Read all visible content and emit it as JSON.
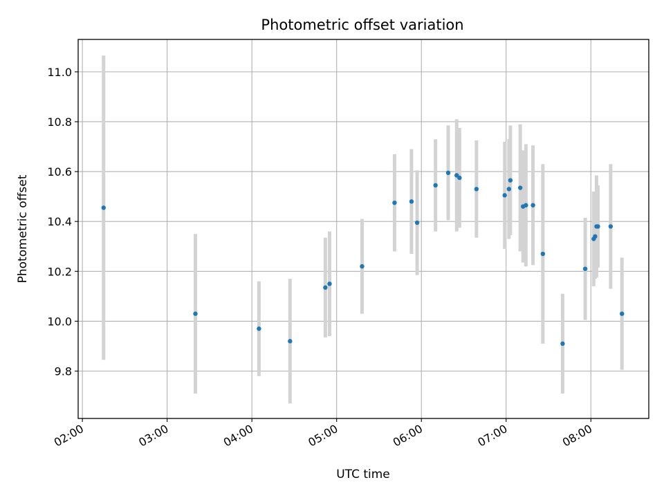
{
  "chart_data": {
    "type": "scatter",
    "title": "Photometric offset variation",
    "xlabel": "UTC time",
    "ylabel": "Photometric offset",
    "x_tick_labels": [
      "02:00",
      "03:00",
      "04:00",
      "05:00",
      "06:00",
      "07:00",
      "08:00"
    ],
    "y_tick_labels": [
      "9.8",
      "10.0",
      "10.2",
      "10.4",
      "10.6",
      "10.8",
      "11.0"
    ],
    "x_ticks": [
      "02:00",
      "03:00",
      "04:00",
      "05:00",
      "06:00",
      "07:00",
      "08:00"
    ],
    "y_ticks": [
      9.8,
      10.0,
      10.2,
      10.4,
      10.6,
      10.8,
      11.0
    ],
    "xlim": [
      "01:57",
      "08:41"
    ],
    "ylim": [
      9.61,
      11.13
    ],
    "grid": true,
    "colors": {
      "point": "#1f77b4",
      "errorbar": "#d3d3d3",
      "grid": "#b0b0b0"
    },
    "points": [
      {
        "x": "02:15",
        "y": 10.455,
        "err": 0.61
      },
      {
        "x": "03:20",
        "y": 10.03,
        "err": 0.32
      },
      {
        "x": "04:05",
        "y": 9.97,
        "err": 0.19
      },
      {
        "x": "04:27",
        "y": 9.92,
        "err": 0.25
      },
      {
        "x": "04:52",
        "y": 10.135,
        "err": 0.2
      },
      {
        "x": "04:55",
        "y": 10.15,
        "err": 0.21
      },
      {
        "x": "05:18",
        "y": 10.22,
        "err": 0.19
      },
      {
        "x": "05:41",
        "y": 10.475,
        "err": 0.195
      },
      {
        "x": "05:53",
        "y": 10.48,
        "err": 0.21
      },
      {
        "x": "05:57",
        "y": 10.395,
        "err": 0.21
      },
      {
        "x": "06:10",
        "y": 10.545,
        "err": 0.185
      },
      {
        "x": "06:19",
        "y": 10.595,
        "err": 0.19
      },
      {
        "x": "06:25",
        "y": 10.585,
        "err": 0.225
      },
      {
        "x": "06:27",
        "y": 10.575,
        "err": 0.2
      },
      {
        "x": "06:39",
        "y": 10.53,
        "err": 0.195
      },
      {
        "x": "06:59",
        "y": 10.505,
        "err": 0.215
      },
      {
        "x": "07:02",
        "y": 10.53,
        "err": 0.2
      },
      {
        "x": "07:03",
        "y": 10.565,
        "err": 0.22
      },
      {
        "x": "07:10",
        "y": 10.535,
        "err": 0.255
      },
      {
        "x": "07:12",
        "y": 10.46,
        "err": 0.225
      },
      {
        "x": "07:14",
        "y": 10.465,
        "err": 0.245
      },
      {
        "x": "07:19",
        "y": 10.465,
        "err": 0.24
      },
      {
        "x": "07:26",
        "y": 10.27,
        "err": 0.36
      },
      {
        "x": "07:40",
        "y": 9.91,
        "err": 0.2
      },
      {
        "x": "07:56",
        "y": 10.21,
        "err": 0.205
      },
      {
        "x": "08:02",
        "y": 10.33,
        "err": 0.19
      },
      {
        "x": "08:03",
        "y": 10.34,
        "err": 0.17
      },
      {
        "x": "08:04",
        "y": 10.38,
        "err": 0.205
      },
      {
        "x": "08:05",
        "y": 10.38,
        "err": 0.165
      },
      {
        "x": "08:14",
        "y": 10.38,
        "err": 0.25
      },
      {
        "x": "08:22",
        "y": 10.03,
        "err": 0.225
      }
    ]
  }
}
